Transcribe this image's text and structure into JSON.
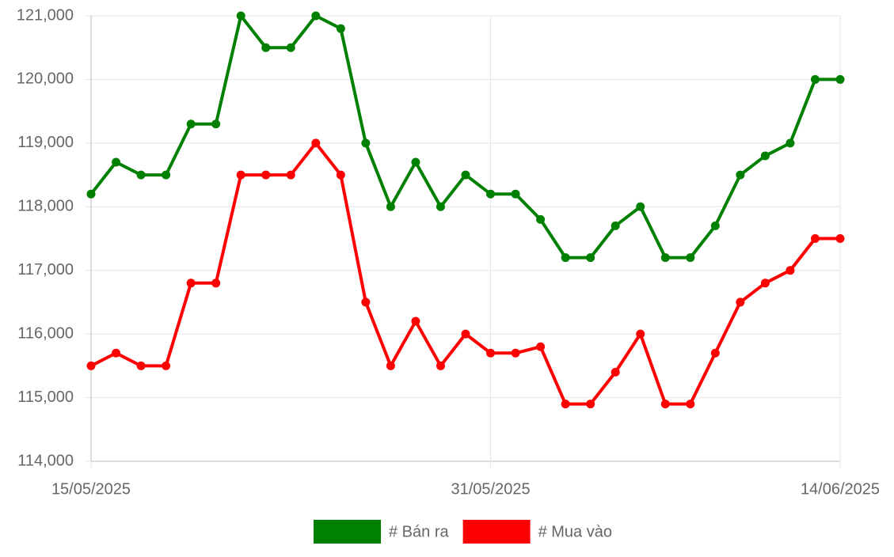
{
  "chart_data": {
    "type": "line",
    "categories": [
      "15/05/2025",
      null,
      null,
      null,
      null,
      null,
      null,
      null,
      null,
      null,
      null,
      null,
      null,
      null,
      null,
      null,
      "31/05/2025",
      null,
      null,
      null,
      null,
      null,
      null,
      null,
      null,
      null,
      null,
      null,
      null,
      null,
      "14/06/2025"
    ],
    "series": [
      {
        "name": "# Bán ra",
        "color": "#008000",
        "values": [
          118200,
          118700,
          118500,
          118500,
          119300,
          119300,
          121000,
          120500,
          120500,
          121000,
          120800,
          119000,
          118000,
          118700,
          118000,
          118500,
          118200,
          118200,
          117800,
          117200,
          117200,
          117700,
          118000,
          117200,
          117200,
          117700,
          118500,
          118800,
          119000,
          120000,
          120000
        ]
      },
      {
        "name": "# Mua vào",
        "color": "#ff0000",
        "values": [
          115500,
          115700,
          115500,
          115500,
          116800,
          116800,
          118500,
          118500,
          118500,
          119000,
          118500,
          116500,
          115500,
          116200,
          115500,
          116000,
          115700,
          115700,
          115800,
          114900,
          114900,
          115400,
          116000,
          114900,
          114900,
          115700,
          116500,
          116800,
          117000,
          117500,
          117500
        ]
      }
    ],
    "ylim": [
      114000,
      121000
    ],
    "yticks": [
      {
        "value": 114000,
        "label": "114,000"
      },
      {
        "value": 115000,
        "label": "115,000"
      },
      {
        "value": 116000,
        "label": "116,000"
      },
      {
        "value": 117000,
        "label": "117,000"
      },
      {
        "value": 118000,
        "label": "118,000"
      },
      {
        "value": 119000,
        "label": "119,000"
      },
      {
        "value": 120000,
        "label": "120,000"
      },
      {
        "value": 121000,
        "label": "121,000"
      }
    ],
    "grid": true,
    "legend": "bottom"
  }
}
